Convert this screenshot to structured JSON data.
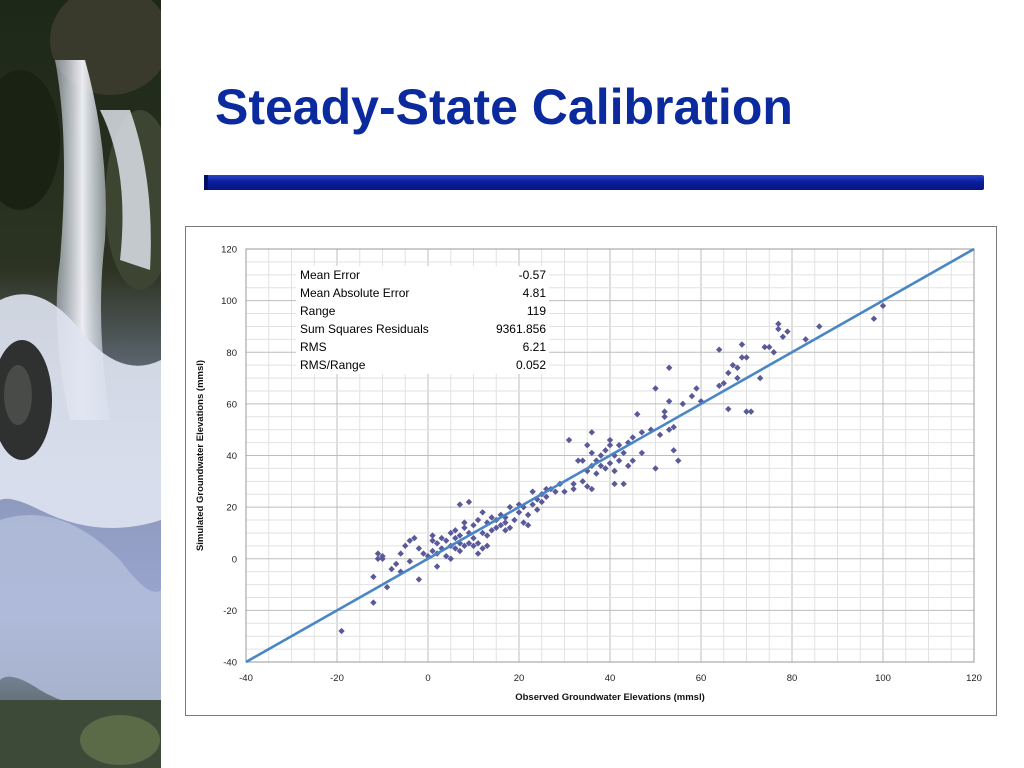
{
  "slide": {
    "title": "Steady-State Calibration"
  },
  "stats": [
    {
      "label": "Mean Error",
      "value": "-0.57"
    },
    {
      "label": "Mean Absolute Error",
      "value": "4.81"
    },
    {
      "label": "Range",
      "value": "119"
    },
    {
      "label": "Sum Squares Residuals",
      "value": "9361.856"
    },
    {
      "label": "RMS",
      "value": "6.21"
    },
    {
      "label": "RMS/Range",
      "value": "0.052"
    }
  ],
  "colors": {
    "title": "#0a2a9e",
    "rule": "#0b1f9e",
    "points": "#5a5a9a",
    "line": "#4a86c5"
  },
  "chart_data": {
    "type": "scatter",
    "title": "",
    "xlabel": "Observed Groundwater Elevations (mmsl)",
    "ylabel": "Simulated Groundwater Elevations (mmsl)",
    "xlim": [
      -40,
      120
    ],
    "ylim": [
      -40,
      120
    ],
    "xticks": [
      "-40",
      "-20",
      "0",
      "20",
      "40",
      "60",
      "80",
      "100",
      "120"
    ],
    "yticks": [
      "120",
      "100",
      "80",
      "60",
      "40",
      "20",
      "0",
      "-20",
      "-40"
    ],
    "grid": true,
    "reference_line": {
      "x": [
        -40,
        120
      ],
      "y": [
        -40,
        120
      ]
    },
    "points": [
      [
        -19,
        -28
      ],
      [
        -12,
        -17
      ],
      [
        -12,
        -7
      ],
      [
        -9,
        -11
      ],
      [
        -11,
        2
      ],
      [
        -10,
        1
      ],
      [
        -11,
        0
      ],
      [
        -10,
        0
      ],
      [
        -8,
        -4
      ],
      [
        -7,
        -2
      ],
      [
        -6,
        -5
      ],
      [
        -6,
        2
      ],
      [
        -5,
        5
      ],
      [
        -4,
        7
      ],
      [
        -3,
        8
      ],
      [
        -4,
        -1
      ],
      [
        -2,
        -8
      ],
      [
        -2,
        4
      ],
      [
        -1,
        2
      ],
      [
        0,
        1
      ],
      [
        1,
        3
      ],
      [
        1,
        7
      ],
      [
        1,
        9
      ],
      [
        2,
        -3
      ],
      [
        2,
        2
      ],
      [
        2,
        6
      ],
      [
        3,
        4
      ],
      [
        3,
        8
      ],
      [
        4,
        7
      ],
      [
        4,
        1
      ],
      [
        5,
        5
      ],
      [
        5,
        0
      ],
      [
        5,
        10
      ],
      [
        6,
        4
      ],
      [
        6,
        8
      ],
      [
        6,
        11
      ],
      [
        7,
        3
      ],
      [
        7,
        6
      ],
      [
        7,
        9
      ],
      [
        7,
        21
      ],
      [
        8,
        5
      ],
      [
        8,
        12
      ],
      [
        8,
        14
      ],
      [
        9,
        22
      ],
      [
        9,
        6
      ],
      [
        9,
        10
      ],
      [
        10,
        5
      ],
      [
        10,
        8
      ],
      [
        10,
        13
      ],
      [
        11,
        2
      ],
      [
        11,
        6
      ],
      [
        11,
        15
      ],
      [
        12,
        4
      ],
      [
        12,
        10
      ],
      [
        12,
        18
      ],
      [
        13,
        5
      ],
      [
        13,
        9
      ],
      [
        13,
        14
      ],
      [
        14,
        16
      ],
      [
        14,
        11
      ],
      [
        15,
        12
      ],
      [
        15,
        15
      ],
      [
        16,
        13
      ],
      [
        16,
        17
      ],
      [
        17,
        16
      ],
      [
        17,
        11
      ],
      [
        17,
        14
      ],
      [
        18,
        20
      ],
      [
        18,
        12
      ],
      [
        19,
        15
      ],
      [
        20,
        21
      ],
      [
        20,
        18
      ],
      [
        21,
        14
      ],
      [
        21,
        20
      ],
      [
        22,
        17
      ],
      [
        22,
        13
      ],
      [
        23,
        21
      ],
      [
        23,
        26
      ],
      [
        24,
        19
      ],
      [
        24,
        23
      ],
      [
        25,
        25
      ],
      [
        25,
        22
      ],
      [
        26,
        27
      ],
      [
        26,
        24
      ],
      [
        27,
        27
      ],
      [
        28,
        26
      ],
      [
        29,
        29
      ],
      [
        30,
        26
      ],
      [
        31,
        46
      ],
      [
        32,
        27
      ],
      [
        32,
        29
      ],
      [
        33,
        38
      ],
      [
        34,
        30
      ],
      [
        34,
        38
      ],
      [
        35,
        28
      ],
      [
        35,
        34
      ],
      [
        35,
        44
      ],
      [
        36,
        27
      ],
      [
        36,
        36
      ],
      [
        36,
        41
      ],
      [
        36,
        49
      ],
      [
        37,
        33
      ],
      [
        37,
        38
      ],
      [
        38,
        36
      ],
      [
        38,
        40
      ],
      [
        39,
        35
      ],
      [
        39,
        42
      ],
      [
        40,
        46
      ],
      [
        40,
        37
      ],
      [
        40,
        44
      ],
      [
        41,
        29
      ],
      [
        41,
        34
      ],
      [
        41,
        40
      ],
      [
        42,
        38
      ],
      [
        42,
        44
      ],
      [
        43,
        29
      ],
      [
        43,
        41
      ],
      [
        44,
        36
      ],
      [
        44,
        45
      ],
      [
        45,
        38
      ],
      [
        45,
        47
      ],
      [
        46,
        56
      ],
      [
        47,
        49
      ],
      [
        47,
        41
      ],
      [
        49,
        50
      ],
      [
        50,
        66
      ],
      [
        50,
        35
      ],
      [
        51,
        48
      ],
      [
        52,
        57
      ],
      [
        52,
        55
      ],
      [
        53,
        61
      ],
      [
        53,
        50
      ],
      [
        53,
        74
      ],
      [
        54,
        51
      ],
      [
        54,
        42
      ],
      [
        55,
        38
      ],
      [
        56,
        60
      ],
      [
        58,
        63
      ],
      [
        59,
        66
      ],
      [
        60,
        61
      ],
      [
        64,
        81
      ],
      [
        64,
        67
      ],
      [
        65,
        68
      ],
      [
        66,
        58
      ],
      [
        66,
        72
      ],
      [
        67,
        75
      ],
      [
        68,
        70
      ],
      [
        68,
        74
      ],
      [
        69,
        78
      ],
      [
        69,
        83
      ],
      [
        70,
        78
      ],
      [
        70,
        57
      ],
      [
        71,
        57
      ],
      [
        73,
        70
      ],
      [
        74,
        82
      ],
      [
        75,
        82
      ],
      [
        76,
        80
      ],
      [
        77,
        91
      ],
      [
        77,
        89
      ],
      [
        78,
        86
      ],
      [
        79,
        88
      ],
      [
        83,
        85
      ],
      [
        86,
        90
      ],
      [
        98,
        93
      ],
      [
        100,
        98
      ]
    ]
  }
}
